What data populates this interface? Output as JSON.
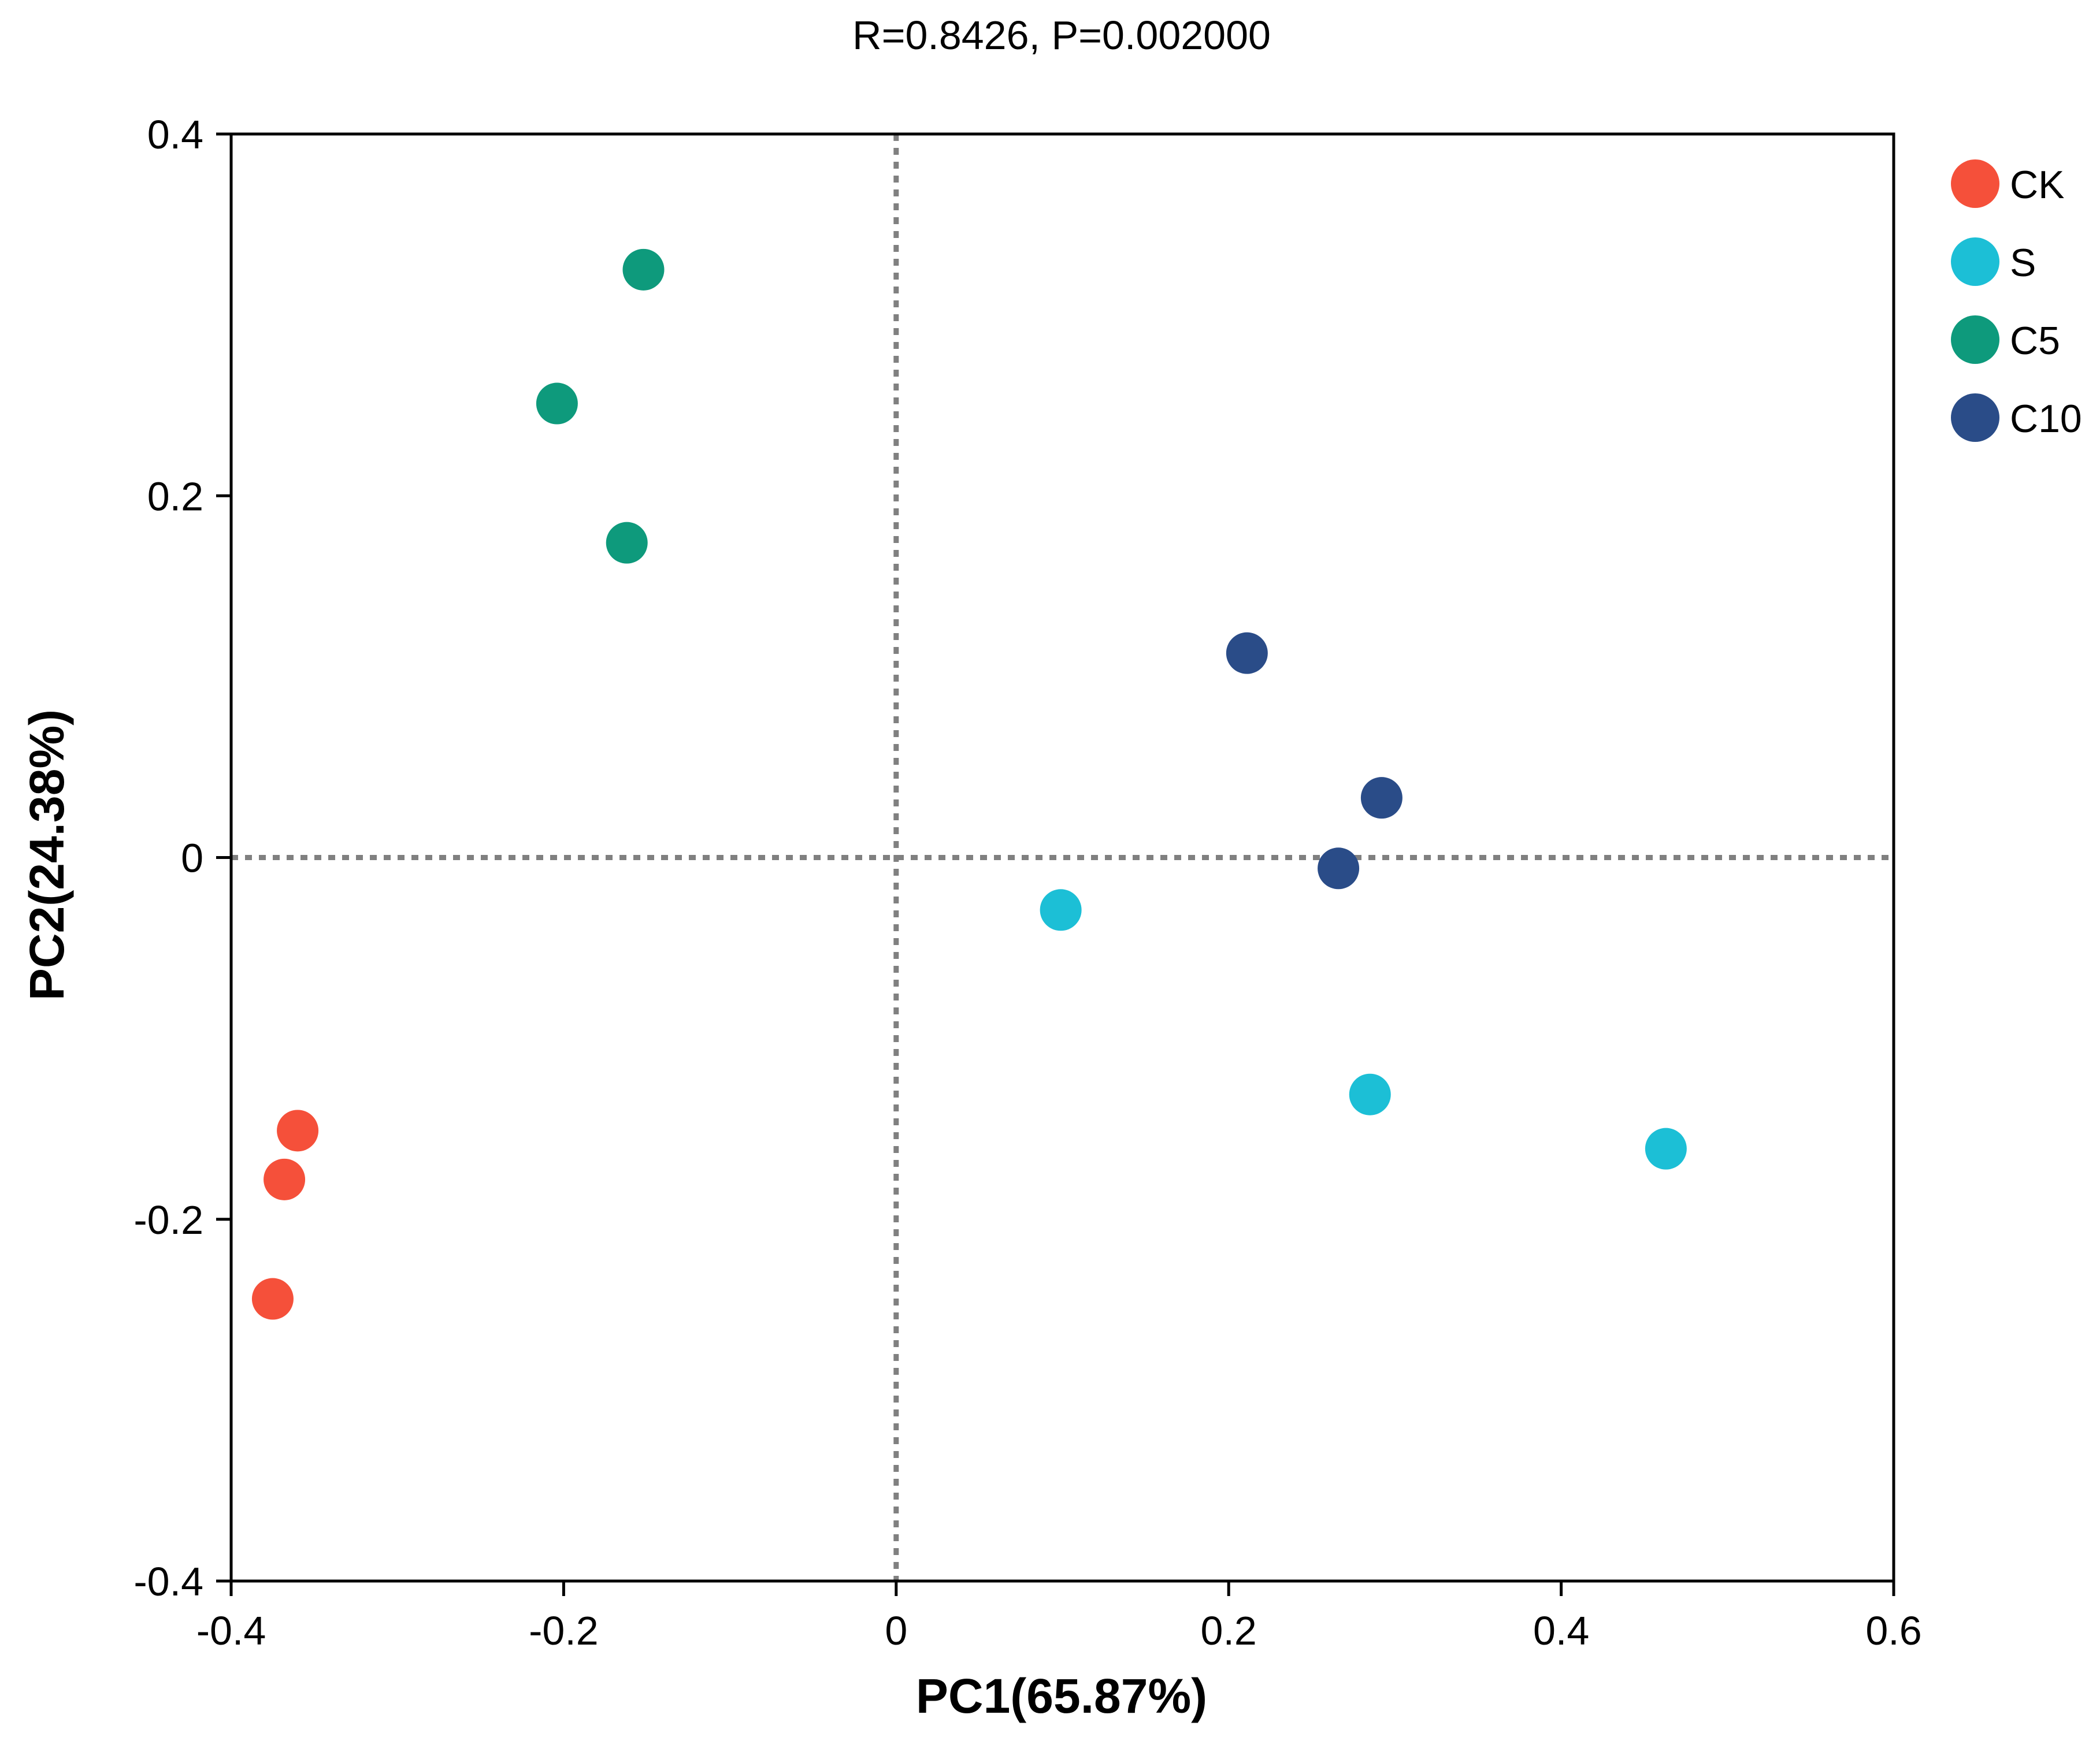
{
  "chart_data": {
    "type": "scatter",
    "title": "R=0.8426, P=0.002000",
    "xlabel": "PC1(65.87%)",
    "ylabel": "PC2(24.38%)",
    "xlim": [
      -0.4,
      0.6
    ],
    "ylim": [
      -0.4,
      0.4
    ],
    "xticks": [
      -0.4,
      -0.2,
      0,
      0.2,
      0.4,
      0.6
    ],
    "xtick_labels": [
      "-0.4",
      "-0.2",
      "0",
      "0.2",
      "0.4",
      "0.6"
    ],
    "yticks": [
      -0.4,
      -0.2,
      0,
      0.2,
      0.4
    ],
    "ytick_labels": [
      "-0.4",
      "-0.2",
      "0",
      "0.2",
      "0.4"
    ],
    "grid": false,
    "reference_lines": {
      "x": 0,
      "y": 0,
      "style": "dotted",
      "color": "#808080"
    },
    "legend_position": "right",
    "series": [
      {
        "name": "CK",
        "color": "#F5503A",
        "points": [
          [
            -0.36,
            -0.151
          ],
          [
            -0.368,
            -0.178
          ],
          [
            -0.375,
            -0.244
          ]
        ]
      },
      {
        "name": "S",
        "color": "#1CBFD6",
        "points": [
          [
            0.099,
            -0.029
          ],
          [
            0.285,
            -0.131
          ],
          [
            0.463,
            -0.161
          ]
        ]
      },
      {
        "name": "C5",
        "color": "#0E9A7C",
        "points": [
          [
            -0.152,
            0.325
          ],
          [
            -0.204,
            0.251
          ],
          [
            -0.162,
            0.174
          ]
        ]
      },
      {
        "name": "C10",
        "color": "#2A4C88",
        "points": [
          [
            0.211,
            0.113
          ],
          [
            0.292,
            0.033
          ],
          [
            0.266,
            -0.006
          ]
        ]
      }
    ]
  }
}
